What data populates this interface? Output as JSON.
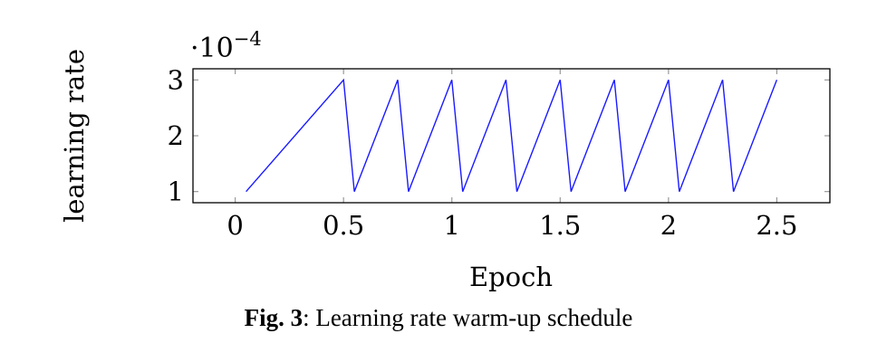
{
  "chart_data": {
    "type": "line",
    "xlabel": "Epoch",
    "ylabel": "learning rate",
    "y_scale_label": "·10",
    "y_scale_exponent": "−4",
    "xlim": [
      -0.195,
      2.745
    ],
    "ylim": [
      0.8,
      3.2
    ],
    "xticks": [
      0,
      0.5,
      1,
      1.5,
      2,
      2.5
    ],
    "xtick_labels": [
      "0",
      "0.5",
      "1",
      "1.5",
      "2",
      "2.5"
    ],
    "yticks": [
      1,
      2,
      3
    ],
    "ytick_labels": [
      "1",
      "2",
      "3"
    ],
    "grid": false,
    "series": [
      {
        "name": "learning rate",
        "color": "#1a1aff",
        "x": [
          0.05,
          0.5,
          0.55,
          0.75,
          0.8,
          1.0,
          1.05,
          1.25,
          1.3,
          1.5,
          1.55,
          1.75,
          1.8,
          2.0,
          2.05,
          2.25,
          2.3,
          2.5
        ],
        "y": [
          1,
          3,
          1,
          3,
          1,
          3,
          1,
          3,
          1,
          3,
          1,
          3,
          1,
          3,
          1,
          3,
          1,
          3
        ]
      }
    ]
  },
  "caption": {
    "label": "Fig. 3",
    "text": ": Learning rate warm-up schedule"
  }
}
